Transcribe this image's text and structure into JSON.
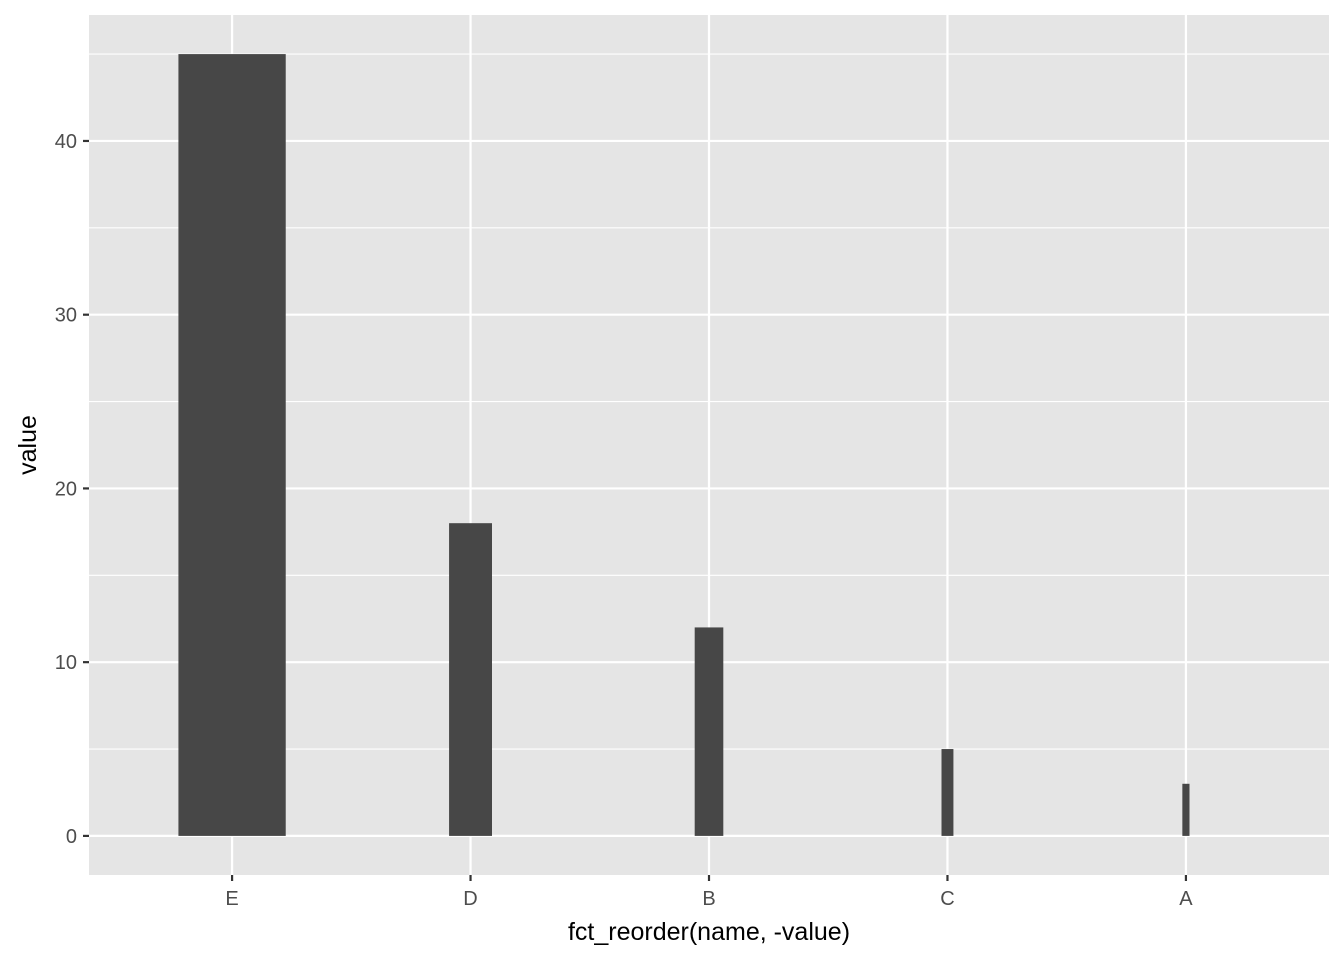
{
  "chart_data": {
    "type": "bar",
    "categories": [
      "E",
      "D",
      "B",
      "C",
      "A"
    ],
    "values": [
      45,
      18,
      12,
      5,
      3
    ],
    "bar_width_fraction": [
      0.45,
      0.18,
      0.12,
      0.05,
      0.03
    ],
    "title": "",
    "xlabel": "fct_reorder(name, -value)",
    "ylabel": "value",
    "ylim": [
      -2.25,
      47.25
    ],
    "yticks": [
      0,
      10,
      20,
      30,
      40
    ],
    "ytick_labels": [
      "0",
      "10",
      "20",
      "30",
      "40"
    ],
    "grid": true,
    "legend": "none",
    "colors": {
      "bar": "#474747",
      "panel_background": "#e5e5e5",
      "grid": "#ffffff",
      "tick": "#333333"
    }
  }
}
